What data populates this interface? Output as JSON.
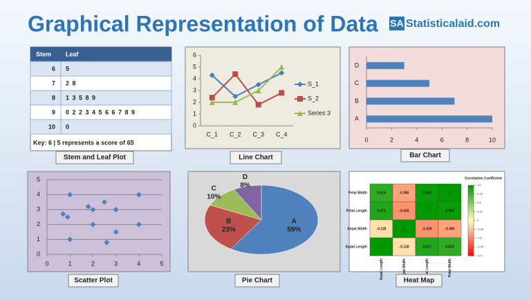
{
  "header": {
    "title": "Graphical Representation of Data",
    "logo_mark": "SA",
    "logo_text": "Statisticalaid.com"
  },
  "table": {
    "caption": "Stem and Leaf Plot",
    "columns": [
      "Stem",
      "Leaf"
    ],
    "rows": [
      [
        "6",
        "5"
      ],
      [
        "7",
        "2 8"
      ],
      [
        "8",
        "1 3 5 8 9"
      ],
      [
        "9",
        "0 2 2 3 4 5 6 6 7 8 9"
      ],
      [
        "10",
        "0"
      ]
    ],
    "key": "Key: 6 | 5 represents  a score of 65"
  },
  "chart_data": [
    {
      "type": "line",
      "caption": "Line Chart",
      "categories": [
        "C_1",
        "C_2",
        "C_3",
        "C_4"
      ],
      "series": [
        {
          "name": "S_1",
          "color": "#4a7ebb",
          "marker": "diamond",
          "values": [
            4.3,
            2.5,
            3.5,
            4.5
          ]
        },
        {
          "name": "S_2",
          "color": "#be4b48",
          "marker": "square",
          "values": [
            2.4,
            4.4,
            1.8,
            2.8
          ]
        },
        {
          "name": "Series 3",
          "color": "#98b954",
          "marker": "triangle",
          "values": [
            2,
            2,
            3,
            5
          ]
        }
      ],
      "ylim": [
        0,
        6
      ],
      "yticks": [
        0,
        1,
        2,
        3,
        4,
        5,
        6
      ],
      "grid": false,
      "legend": "right"
    },
    {
      "type": "bar",
      "orientation": "horizontal",
      "caption": "Bar Chart",
      "categories": [
        "A",
        "B",
        "C",
        "D"
      ],
      "values": [
        10,
        7,
        5,
        3
      ],
      "color": "#4f81bd",
      "xlim": [
        0,
        10
      ],
      "xticks": [
        0,
        2,
        4,
        6,
        8,
        10
      ],
      "grid": false
    },
    {
      "type": "scatter",
      "caption": "Scatter Plot",
      "x": [
        0.7,
        0.9,
        1,
        1,
        1.8,
        2,
        2,
        2.5,
        2.6,
        3,
        3,
        4,
        4
      ],
      "values": [
        2.7,
        2.5,
        4,
        1,
        3.2,
        3,
        2,
        3.5,
        0.8,
        3,
        1.5,
        4,
        2
      ],
      "color": "#4f81bd",
      "xlim": [
        0,
        5
      ],
      "xticks": [
        0,
        1,
        2,
        3,
        4,
        5
      ],
      "ylim": [
        0,
        5
      ],
      "yticks": [
        0,
        1,
        2,
        3,
        4,
        5
      ],
      "grid": true
    },
    {
      "type": "pie",
      "caption": "Pie Chart",
      "categories": [
        "A",
        "B",
        "C",
        "D"
      ],
      "values": [
        59,
        23,
        10,
        8
      ],
      "value_labels": [
        "59%",
        "23%",
        "10%",
        "8%"
      ],
      "colors": [
        "#4f81bd",
        "#c0504d",
        "#9bbb59",
        "#8064a2"
      ]
    },
    {
      "type": "heatmap",
      "caption": "Heat Map",
      "title": "Correlation Coefficient",
      "rows": [
        "Petal Width",
        "Petal Length",
        "Sepal Width",
        "Sepal Length"
      ],
      "columns": [
        "Sepal Length",
        "Sepal Width",
        "Petal Length",
        "Petal Width"
      ],
      "values": [
        [
          0.818,
          -0.366,
          0.963,
          1
        ],
        [
          0.872,
          -0.428,
          1,
          0.963
        ],
        [
          -0.118,
          1,
          -0.428,
          -0.366
        ],
        [
          1,
          -0.118,
          0.872,
          0.818
        ]
      ],
      "colorscale": [
        "#ff0000",
        "#ffffc0",
        "#009900"
      ],
      "clim": [
        -1,
        1
      ],
      "cticks": [
        {
          "value": 1,
          "label": "1.0"
        },
        0.75,
        0.5,
        0.25,
        0,
        -0.25,
        -0.5,
        -0.75,
        {
          "value": -1,
          "label": "-1.0"
        }
      ]
    }
  ]
}
